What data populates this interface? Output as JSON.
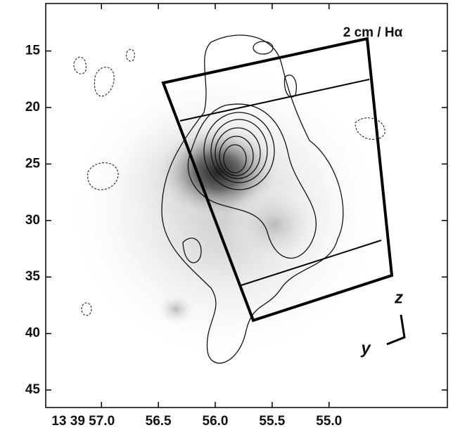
{
  "chart_data": {
    "type": "image",
    "annotation": "2 cm / Hα",
    "axis_z_label": "z",
    "axis_y_label": "y",
    "xlim": [
      57.49,
      53.96
    ],
    "xticks": [
      {
        "value": 57.0,
        "label": "13 39 57.0"
      },
      56.5,
      {
        "value": 56.0,
        "label": "56.0"
      },
      55.5,
      {
        "value": 55.0,
        "label": "55.0"
      }
    ],
    "ylim": [
      46.55,
      10.8
    ],
    "yticks": [
      15,
      20,
      25,
      30,
      35,
      40,
      45
    ]
  }
}
